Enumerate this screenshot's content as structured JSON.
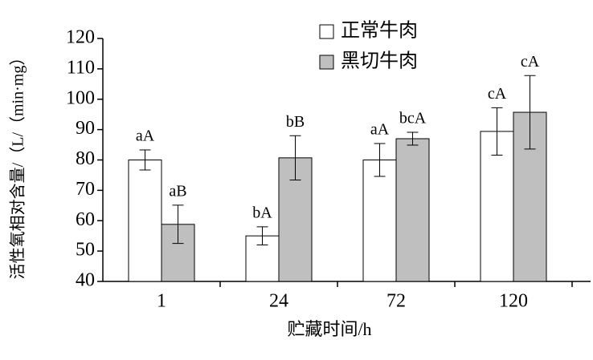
{
  "chart_data": {
    "type": "bar",
    "x_label": "贮藏时间/h",
    "y_label": "活性氧相对含量/（L/（min·mg）",
    "categories": [
      "1",
      "24",
      "72",
      "120"
    ],
    "series": [
      {
        "name": "正常牛肉",
        "color": "#ffffff",
        "values": [
          80,
          55,
          80,
          89.4
        ],
        "errors": [
          3.3,
          3,
          5.4,
          7.8
        ],
        "annotations": [
          "aA",
          "bA",
          "aA",
          "cA"
        ]
      },
      {
        "name": "黑切牛肉",
        "color": "#bfbfbf",
        "values": [
          58.8,
          80.7,
          87,
          95.7
        ],
        "errors": [
          6.3,
          7.3,
          2.1,
          12.1
        ],
        "annotations": [
          "aB",
          "bB",
          "bcA",
          "cA"
        ]
      }
    ],
    "ylim": [
      40,
      120
    ],
    "yticks": [
      40,
      50,
      60,
      70,
      80,
      90,
      100,
      110,
      120
    ],
    "grid": false,
    "legend": "top"
  }
}
